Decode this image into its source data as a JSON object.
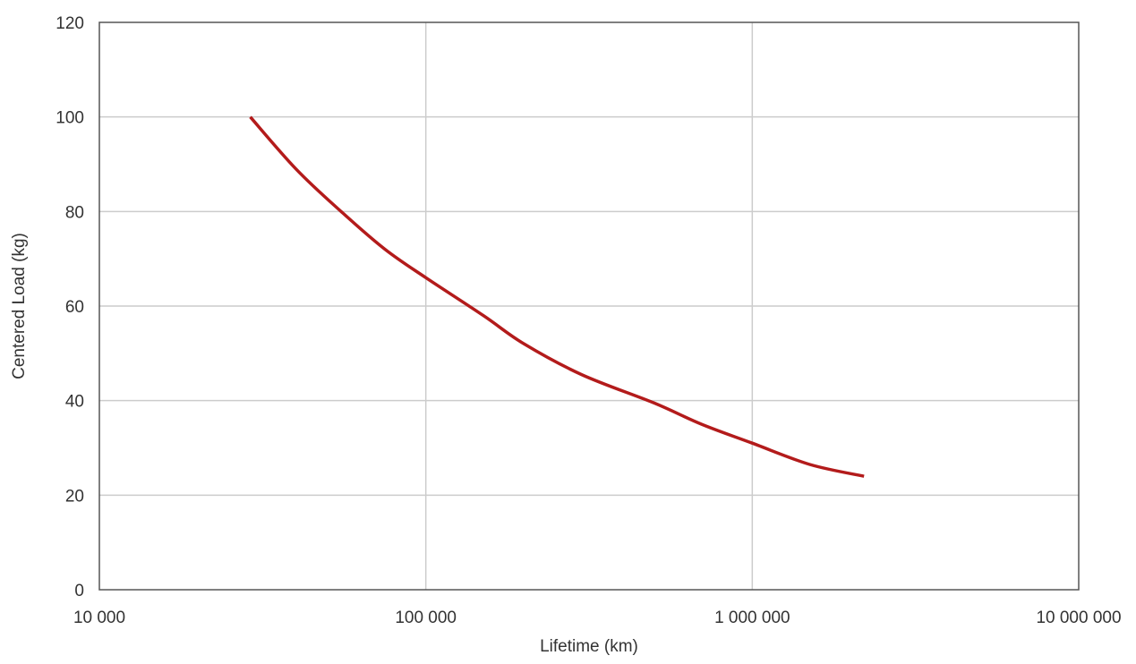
{
  "chart_data": {
    "type": "line",
    "title": "",
    "xlabel": "Lifetime (km)",
    "ylabel": "Centered Load (kg)",
    "x_scale": "log",
    "xlim": [
      10000,
      10000000
    ],
    "ylim": [
      0,
      120
    ],
    "x_ticks": [
      10000,
      100000,
      1000000,
      10000000
    ],
    "x_tick_labels": [
      "10 000",
      "100 000",
      "1 000 000",
      "10 000 000"
    ],
    "y_ticks": [
      0,
      20,
      40,
      60,
      80,
      100,
      120
    ],
    "y_tick_labels": [
      "0",
      "20",
      "40",
      "60",
      "80",
      "100",
      "120"
    ],
    "grid": true,
    "legend": "none",
    "series": [
      {
        "color": "#b31b1b",
        "points": [
          {
            "x": 29000,
            "y": 100
          },
          {
            "x": 40000,
            "y": 89
          },
          {
            "x": 55000,
            "y": 80
          },
          {
            "x": 75000,
            "y": 72
          },
          {
            "x": 100000,
            "y": 66
          },
          {
            "x": 150000,
            "y": 58
          },
          {
            "x": 200000,
            "y": 52
          },
          {
            "x": 300000,
            "y": 45.5
          },
          {
            "x": 500000,
            "y": 39.5
          },
          {
            "x": 700000,
            "y": 35
          },
          {
            "x": 1000000,
            "y": 31
          },
          {
            "x": 1500000,
            "y": 26.5
          },
          {
            "x": 2200000,
            "y": 24
          }
        ]
      }
    ]
  },
  "colors": {
    "axis": "#555555",
    "grid": "#cccccc",
    "text": "#333333"
  }
}
